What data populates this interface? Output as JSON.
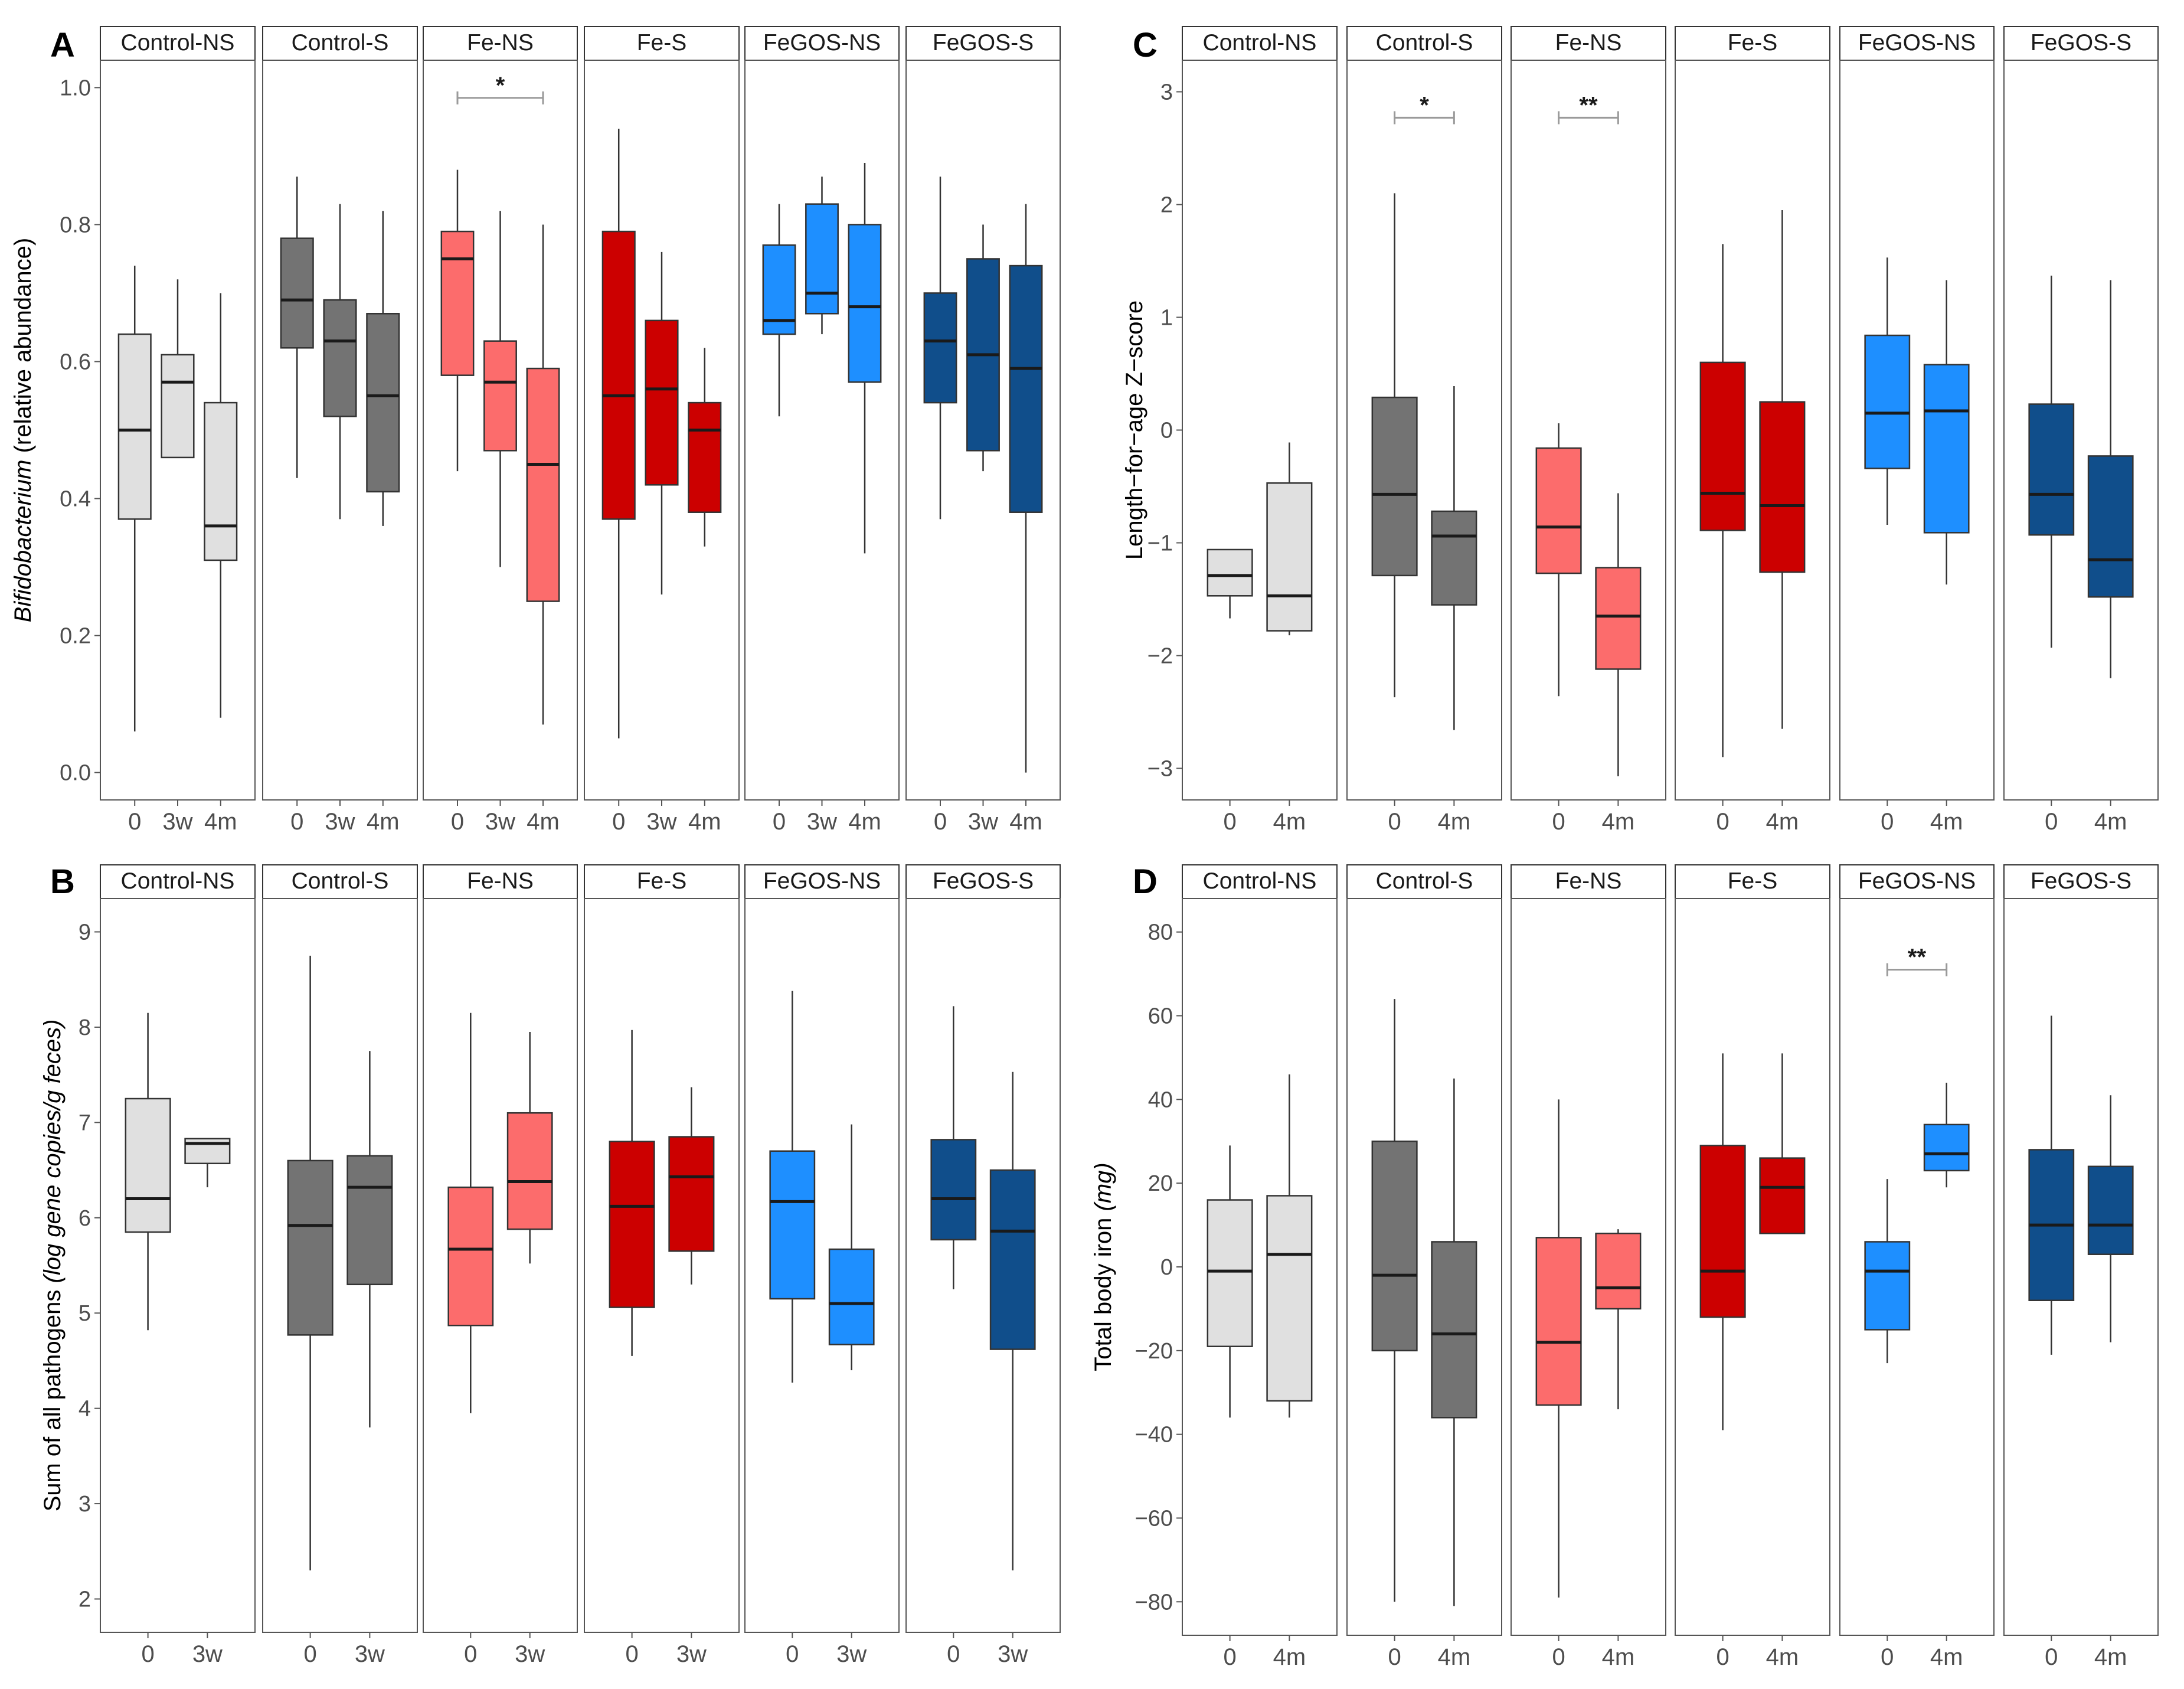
{
  "colors": {
    "Control-NS": "#e0e0e0",
    "Control-S": "#737373",
    "Fe-NS": "#fc6c6c",
    "Fe-S": "#cc0000",
    "FeGOS-NS": "#1e8fff",
    "FeGOS-S": "#104e8b",
    "strip_bg": "#ffffff",
    "axis": "#555555",
    "box_stroke": "#333333",
    "text": "#000000"
  },
  "chart_data": [
    {
      "id": "A",
      "type": "boxplot",
      "panel_label": "A",
      "ylabel_italic": "Bifidobacterium",
      "ylabel_rest": " (relative abundance)",
      "ylim": [
        -0.04,
        1.04
      ],
      "yticks": [
        0.0,
        0.2,
        0.4,
        0.6,
        0.8,
        1.0
      ],
      "ytick_labels": [
        "0.0",
        "0.2",
        "0.4",
        "0.6",
        "0.8",
        "1.0"
      ],
      "facets": [
        {
          "name": "Control-NS",
          "boxes": [
            {
              "x": "0",
              "min": 0.06,
              "q1": 0.37,
              "median": 0.5,
              "q3": 0.64,
              "max": 0.74
            },
            {
              "x": "3w",
              "min": 0.46,
              "q1": 0.46,
              "median": 0.57,
              "q3": 0.61,
              "max": 0.72
            },
            {
              "x": "4m",
              "min": 0.08,
              "q1": 0.31,
              "median": 0.36,
              "q3": 0.54,
              "max": 0.7
            }
          ]
        },
        {
          "name": "Control-S",
          "boxes": [
            {
              "x": "0",
              "min": 0.43,
              "q1": 0.62,
              "median": 0.69,
              "q3": 0.78,
              "max": 0.87
            },
            {
              "x": "3w",
              "min": 0.37,
              "q1": 0.52,
              "median": 0.63,
              "q3": 0.69,
              "max": 0.83
            },
            {
              "x": "4m",
              "min": 0.36,
              "q1": 0.41,
              "median": 0.55,
              "q3": 0.67,
              "max": 0.82
            }
          ]
        },
        {
          "name": "Fe-NS",
          "boxes": [
            {
              "x": "0",
              "min": 0.44,
              "q1": 0.58,
              "median": 0.75,
              "q3": 0.79,
              "max": 0.88
            },
            {
              "x": "3w",
              "min": 0.3,
              "q1": 0.47,
              "median": 0.57,
              "q3": 0.63,
              "max": 0.82
            },
            {
              "x": "4m",
              "min": 0.07,
              "q1": 0.25,
              "median": 0.45,
              "q3": 0.59,
              "max": 0.8
            }
          ],
          "sig": {
            "from": 0,
            "to": 2,
            "label": "*",
            "y": 0.985
          }
        },
        {
          "name": "Fe-S",
          "boxes": [
            {
              "x": "0",
              "min": 0.05,
              "q1": 0.37,
              "median": 0.55,
              "q3": 0.79,
              "max": 0.94
            },
            {
              "x": "3w",
              "min": 0.26,
              "q1": 0.42,
              "median": 0.56,
              "q3": 0.66,
              "max": 0.76
            },
            {
              "x": "4m",
              "min": 0.33,
              "q1": 0.38,
              "median": 0.5,
              "q3": 0.54,
              "max": 0.62
            }
          ]
        },
        {
          "name": "FeGOS-NS",
          "boxes": [
            {
              "x": "0",
              "min": 0.52,
              "q1": 0.64,
              "median": 0.66,
              "q3": 0.77,
              "max": 0.83
            },
            {
              "x": "3w",
              "min": 0.64,
              "q1": 0.67,
              "median": 0.7,
              "q3": 0.83,
              "max": 0.87
            },
            {
              "x": "4m",
              "min": 0.32,
              "q1": 0.57,
              "median": 0.68,
              "q3": 0.8,
              "max": 0.89
            }
          ]
        },
        {
          "name": "FeGOS-S",
          "boxes": [
            {
              "x": "0",
              "min": 0.37,
              "q1": 0.54,
              "median": 0.63,
              "q3": 0.7,
              "max": 0.87
            },
            {
              "x": "3w",
              "min": 0.44,
              "q1": 0.47,
              "median": 0.61,
              "q3": 0.75,
              "max": 0.8
            },
            {
              "x": "4m",
              "min": 0.0,
              "q1": 0.38,
              "median": 0.59,
              "q3": 0.74,
              "max": 0.83
            }
          ]
        }
      ]
    },
    {
      "id": "B",
      "type": "boxplot",
      "panel_label": "B",
      "ylabel_plain": "Sum of all pathogens ",
      "ylabel_italic": "(log gene copies/g feces)",
      "ylim": [
        1.65,
        9.35
      ],
      "yticks": [
        2,
        3,
        4,
        5,
        6,
        7,
        8,
        9
      ],
      "ytick_labels": [
        "2",
        "3",
        "4",
        "5",
        "6",
        "7",
        "8",
        "9"
      ],
      "facets": [
        {
          "name": "Control-NS",
          "boxes": [
            {
              "x": "0",
              "min": 4.82,
              "q1": 5.85,
              "median": 6.2,
              "q3": 7.25,
              "max": 8.15
            },
            {
              "x": "3w",
              "min": 6.32,
              "q1": 6.57,
              "median": 6.78,
              "q3": 6.83,
              "max": 6.83
            }
          ]
        },
        {
          "name": "Control-S",
          "boxes": [
            {
              "x": "0",
              "min": 2.3,
              "q1": 4.77,
              "median": 5.92,
              "q3": 6.6,
              "max": 8.75
            },
            {
              "x": "3w",
              "min": 3.8,
              "q1": 5.3,
              "median": 6.32,
              "q3": 6.65,
              "max": 7.75
            }
          ]
        },
        {
          "name": "Fe-NS",
          "boxes": [
            {
              "x": "0",
              "min": 3.95,
              "q1": 4.87,
              "median": 5.67,
              "q3": 6.32,
              "max": 8.15
            },
            {
              "x": "3w",
              "min": 5.52,
              "q1": 5.88,
              "median": 6.38,
              "q3": 7.1,
              "max": 7.95
            }
          ]
        },
        {
          "name": "Fe-S",
          "boxes": [
            {
              "x": "0",
              "min": 4.55,
              "q1": 5.06,
              "median": 6.12,
              "q3": 6.8,
              "max": 7.97
            },
            {
              "x": "3w",
              "min": 5.3,
              "q1": 5.65,
              "median": 6.43,
              "q3": 6.85,
              "max": 7.37
            }
          ]
        },
        {
          "name": "FeGOS-NS",
          "boxes": [
            {
              "x": "0",
              "min": 4.27,
              "q1": 5.15,
              "median": 6.17,
              "q3": 6.7,
              "max": 8.38
            },
            {
              "x": "3w",
              "min": 4.4,
              "q1": 4.67,
              "median": 5.1,
              "q3": 5.67,
              "max": 6.98
            }
          ]
        },
        {
          "name": "FeGOS-S",
          "boxes": [
            {
              "x": "0",
              "min": 5.25,
              "q1": 5.77,
              "median": 6.2,
              "q3": 6.82,
              "max": 8.22
            },
            {
              "x": "3w",
              "min": 2.3,
              "q1": 4.62,
              "median": 5.86,
              "q3": 6.5,
              "max": 7.53
            }
          ]
        }
      ]
    },
    {
      "id": "C",
      "type": "boxplot",
      "panel_label": "C",
      "ylabel_plain": "Length−for−age Z−score",
      "ylim": [
        -3.28,
        3.28
      ],
      "yticks": [
        -3,
        -2,
        -1,
        0,
        1,
        2,
        3
      ],
      "ytick_labels": [
        "−3",
        "−2",
        "−1",
        "0",
        "1",
        "2",
        "3"
      ],
      "facets": [
        {
          "name": "Control-NS",
          "boxes": [
            {
              "x": "0",
              "min": -1.67,
              "q1": -1.47,
              "median": -1.29,
              "q3": -1.06,
              "max": -1.06
            },
            {
              "x": "4m",
              "min": -1.82,
              "q1": -1.78,
              "median": -1.47,
              "q3": -0.47,
              "max": -0.11
            }
          ]
        },
        {
          "name": "Control-S",
          "boxes": [
            {
              "x": "0",
              "min": -2.37,
              "q1": -1.29,
              "median": -0.57,
              "q3": 0.29,
              "max": 2.1
            },
            {
              "x": "4m",
              "min": -2.66,
              "q1": -1.55,
              "median": -0.94,
              "q3": -0.72,
              "max": 0.39
            }
          ],
          "sig": {
            "from": 0,
            "to": 1,
            "label": "*",
            "y": 2.77
          }
        },
        {
          "name": "Fe-NS",
          "boxes": [
            {
              "x": "0",
              "min": -2.36,
              "q1": -1.27,
              "median": -0.86,
              "q3": -0.16,
              "max": 0.06
            },
            {
              "x": "4m",
              "min": -3.07,
              "q1": -2.12,
              "median": -1.65,
              "q3": -1.22,
              "max": -0.56
            }
          ],
          "sig": {
            "from": 0,
            "to": 1,
            "label": "**",
            "y": 2.77
          }
        },
        {
          "name": "Fe-S",
          "boxes": [
            {
              "x": "0",
              "min": -2.9,
              "q1": -0.89,
              "median": -0.56,
              "q3": 0.6,
              "max": 1.65
            },
            {
              "x": "4m",
              "min": -2.65,
              "q1": -1.26,
              "median": -0.67,
              "q3": 0.25,
              "max": 1.95
            }
          ]
        },
        {
          "name": "FeGOS-NS",
          "boxes": [
            {
              "x": "0",
              "min": -0.84,
              "q1": -0.34,
              "median": 0.15,
              "q3": 0.84,
              "max": 1.53
            },
            {
              "x": "4m",
              "min": -1.37,
              "q1": -0.91,
              "median": 0.17,
              "q3": 0.58,
              "max": 1.33
            }
          ]
        },
        {
          "name": "FeGOS-S",
          "boxes": [
            {
              "x": "0",
              "min": -1.93,
              "q1": -0.93,
              "median": -0.57,
              "q3": 0.23,
              "max": 1.37
            },
            {
              "x": "4m",
              "min": -2.2,
              "q1": -1.48,
              "median": -1.15,
              "q3": -0.23,
              "max": 1.33
            }
          ]
        }
      ]
    },
    {
      "id": "D",
      "type": "boxplot",
      "panel_label": "D",
      "ylabel_plain": "Total body iron ",
      "ylabel_italic": "(mg)",
      "ylim": [
        -88,
        88
      ],
      "yticks": [
        -80,
        -60,
        -40,
        -20,
        0,
        20,
        40,
        60,
        80
      ],
      "ytick_labels": [
        "−80",
        "−60",
        "−40",
        "−20",
        "0",
        "20",
        "40",
        "60",
        "80"
      ],
      "facets": [
        {
          "name": "Control-NS",
          "boxes": [
            {
              "x": "0",
              "min": -36,
              "q1": -19,
              "median": -1,
              "q3": 16,
              "max": 29
            },
            {
              "x": "4m",
              "min": -36,
              "q1": -32,
              "median": 3,
              "q3": 17,
              "max": 46
            }
          ]
        },
        {
          "name": "Control-S",
          "boxes": [
            {
              "x": "0",
              "min": -80,
              "q1": -20,
              "median": -2,
              "q3": 30,
              "max": 64
            },
            {
              "x": "4m",
              "min": -81,
              "q1": -36,
              "median": -16,
              "q3": 6,
              "max": 45
            }
          ]
        },
        {
          "name": "Fe-NS",
          "boxes": [
            {
              "x": "0",
              "min": -79,
              "q1": -33,
              "median": -18,
              "q3": 7,
              "max": 40
            },
            {
              "x": "4m",
              "min": -34,
              "q1": -10,
              "median": -5,
              "q3": 8,
              "max": 9
            }
          ]
        },
        {
          "name": "Fe-S",
          "boxes": [
            {
              "x": "0",
              "min": -39,
              "q1": -12,
              "median": -1,
              "q3": 29,
              "max": 51
            },
            {
              "x": "4m",
              "min": 8,
              "q1": 8,
              "median": 19,
              "q3": 26,
              "max": 51
            }
          ]
        },
        {
          "name": "FeGOS-NS",
          "boxes": [
            {
              "x": "0",
              "min": -23,
              "q1": -15,
              "median": -1,
              "q3": 6,
              "max": 21
            },
            {
              "x": "4m",
              "min": 19,
              "q1": 23,
              "median": 27,
              "q3": 34,
              "max": 44
            }
          ],
          "sig": {
            "from": 0,
            "to": 1,
            "label": "**",
            "y": 71
          }
        },
        {
          "name": "FeGOS-S",
          "boxes": [
            {
              "x": "0",
              "min": -21,
              "q1": -8,
              "median": 10,
              "q3": 28,
              "max": 60
            },
            {
              "x": "4m",
              "min": -18,
              "q1": 3,
              "median": 10,
              "q3": 24,
              "max": 41
            }
          ]
        }
      ]
    }
  ]
}
